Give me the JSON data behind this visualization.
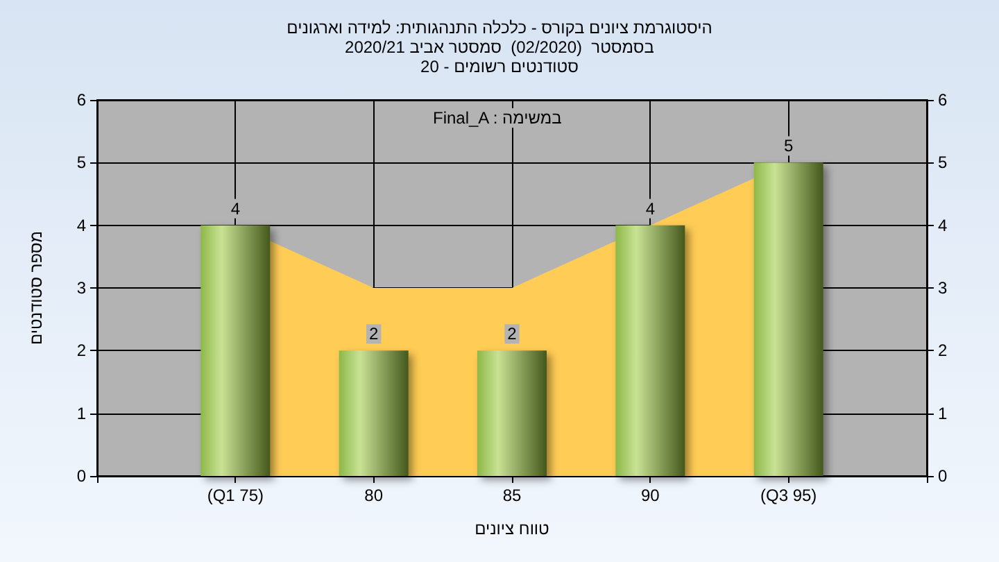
{
  "chart_data": {
    "type": "bar",
    "title": "היסטוגרמת ציונים בקורס - כלכלה התנהגותית: למידה וארגונים",
    "subtitle": "בסמסטר  (02/2020)  סמסטר אביב 2020/21\nסטודנטים רשומים - 20",
    "xlabel": "טווח ציונים",
    "ylabel": "מספר סטודנטים",
    "annotations": [
      "Final_A : במשימה"
    ],
    "categories": [
      "(Q1 75)",
      "80",
      "85",
      "90",
      "(Q3 95)"
    ],
    "series": [
      {
        "type": "area",
        "color": "#ffcc55",
        "values": [
          4,
          3,
          3,
          4,
          5
        ]
      },
      {
        "color": "#8db848",
        "values": [
          4,
          2,
          2,
          4,
          5
        ],
        "data_labels": true
      }
    ],
    "ylim": [
      0,
      6
    ],
    "yticks": [
      0,
      1,
      2,
      3,
      4,
      5,
      6
    ],
    "y2lim": [
      0,
      6
    ],
    "y2ticks": [
      0,
      1,
      2,
      3,
      4,
      5,
      6
    ],
    "grid": true
  }
}
